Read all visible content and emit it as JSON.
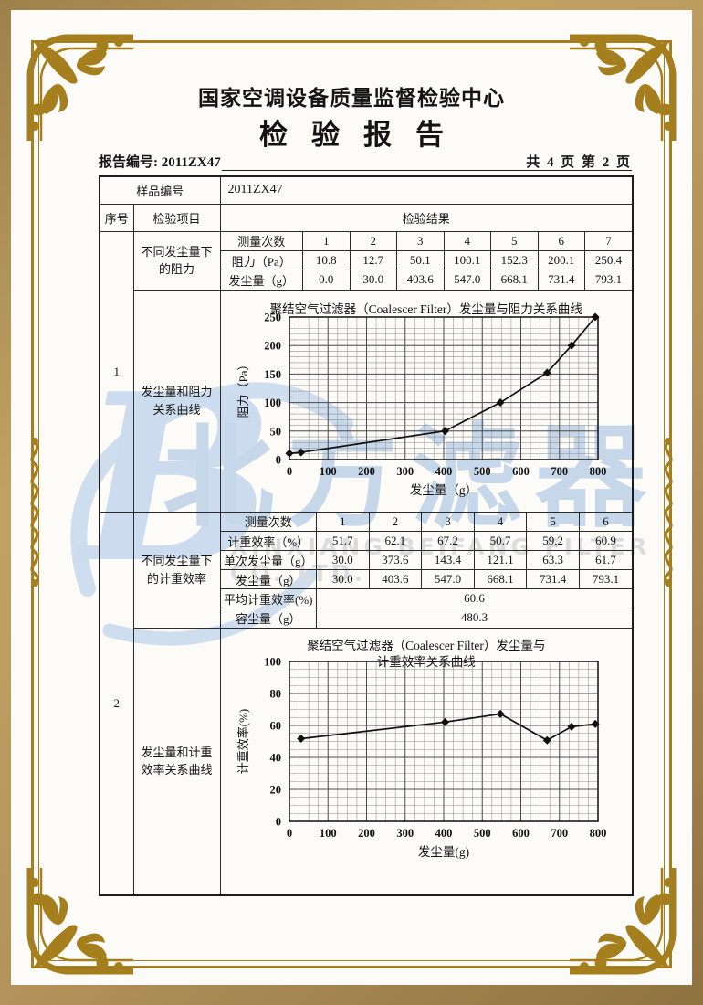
{
  "header": {
    "org": "国家空调设备质量监督检验中心",
    "title": "检验报告",
    "report_no": "报告编号: 2011ZX47",
    "pagination": "共 4 页 第 2 页"
  },
  "table": {
    "sample_label": "样品编号",
    "sample_no": "2011ZX47",
    "col_no": "序号",
    "col_item": "检验项目",
    "col_result": "检验结果",
    "block1": {
      "no": "1",
      "item1": "不同发尘量下的阻力",
      "item2": "发尘量和阻力关系曲线",
      "sub": {
        "row_labels": [
          "测量次数",
          "阻力（Pa）",
          "发尘量（g）"
        ],
        "counts": [
          "1",
          "2",
          "3",
          "4",
          "5",
          "6",
          "7"
        ],
        "resistance": [
          "10.8",
          "12.7",
          "50.1",
          "100.1",
          "152.3",
          "200.1",
          "250.4"
        ],
        "dust": [
          "0.0",
          "30.0",
          "403.6",
          "547.0",
          "668.1",
          "731.4",
          "793.1"
        ]
      }
    },
    "block2": {
      "no": "2",
      "item1": "不同发尘量下的计重效率",
      "item2": "发尘量和计重效率关系曲线",
      "sub": {
        "row_labels": [
          "测量次数",
          "计重效率（%）",
          "单次发尘量（g）",
          "发尘量（g）",
          "平均计重效率(%)",
          "容尘量（g）"
        ],
        "counts": [
          "1",
          "2",
          "3",
          "4",
          "5",
          "6"
        ],
        "efficiency": [
          "51.7",
          "62.1",
          "67.2",
          "50.7",
          "59.2",
          "60.9"
        ],
        "single_dust": [
          "30.0",
          "373.6",
          "143.4",
          "121.1",
          "63.3",
          "61.7"
        ],
        "dust": [
          "30.0",
          "403.6",
          "547.0",
          "668.1",
          "731.4",
          "793.1"
        ],
        "avg_efficiency": "60.6",
        "dust_capacity": "480.3"
      }
    }
  },
  "watermark": {
    "logo_letter": "B",
    "cn": "北方滤器",
    "en": "XINXIANG BEIFANG FILTER CO.,LTD."
  },
  "colors": {
    "gold": "#a57e1e",
    "tan": "#b3925a",
    "watermark_blue": "#c6d7ea",
    "table_line": "#2b2b2b"
  },
  "chart_data": [
    {
      "type": "line",
      "title": "聚结空气过滤器（Coalescer Filter）发尘量与阻力关系曲线",
      "xlabel": "发尘量（g）",
      "ylabel": "阻力（Pa）",
      "x": [
        0,
        30,
        403.6,
        547.0,
        668.1,
        731.4,
        793.1
      ],
      "y": [
        10.8,
        12.7,
        50.1,
        100.1,
        152.3,
        200.1,
        250.4
      ],
      "xlim": [
        0,
        800
      ],
      "ylim": [
        0,
        250
      ],
      "xticks": [
        0,
        100,
        200,
        300,
        400,
        500,
        600,
        700,
        800
      ],
      "yticks": [
        0,
        50,
        100,
        150,
        200,
        250
      ],
      "grid": true,
      "legend": false
    },
    {
      "type": "line",
      "title": "聚结空气过滤器（Coalescer Filter）发尘量与",
      "title2": "计重效率关系曲线",
      "xlabel": "发尘量(g)",
      "ylabel": "计重效率(%)",
      "x": [
        30,
        403.6,
        547.0,
        668.1,
        731.4,
        793.1
      ],
      "y": [
        51.7,
        62.1,
        67.2,
        50.7,
        59.2,
        60.9
      ],
      "xlim": [
        0,
        800
      ],
      "ylim": [
        0,
        100
      ],
      "xticks": [
        0,
        100,
        200,
        300,
        400,
        500,
        600,
        700,
        800
      ],
      "yticks": [
        0,
        20,
        40,
        60,
        80,
        100
      ],
      "grid": true,
      "legend": false
    }
  ]
}
